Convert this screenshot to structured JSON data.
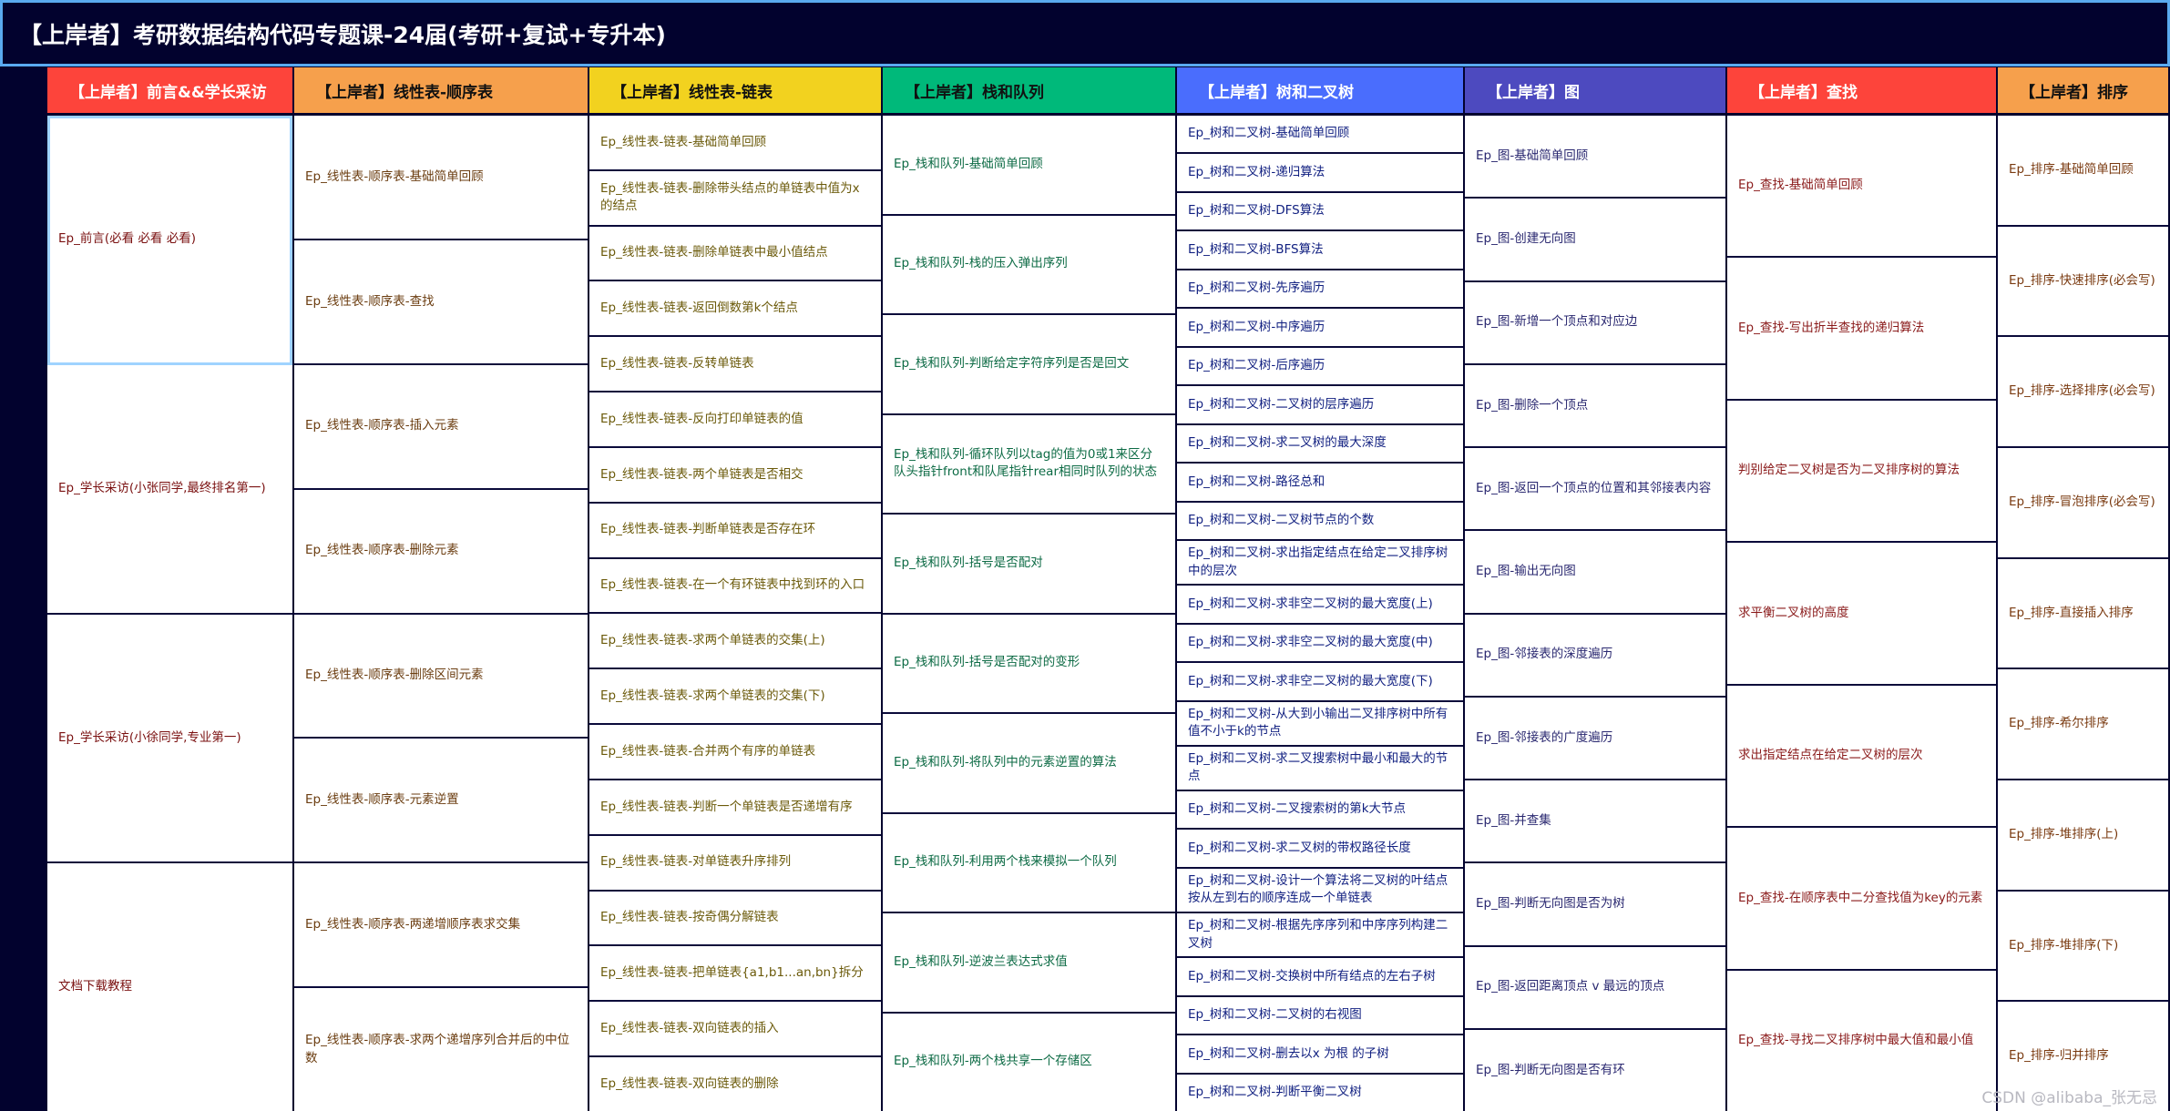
{
  "title": "【上岸者】考研数据结构代码专题课-24届(考研+复试+专升本)",
  "watermark": "CSDN @alibaba_张无忌",
  "columns": [
    {
      "header": "【上岸者】前言&&学长采访",
      "header_bg": "#fd443b",
      "header_fg": "#ffffff",
      "text_color": "#7a1010",
      "items": [
        "Ep_前言(必看 必看 必看)",
        "Ep_学长采访(小张同学,最终排名第一)",
        "Ep_学长采访(小徐同学,专业第一)",
        "文档下载教程"
      ]
    },
    {
      "header": "【上岸者】线性表-顺序表",
      "header_bg": "#f6a04c",
      "header_fg": "#111111",
      "text_color": "#6b3d10",
      "items": [
        "Ep_线性表-顺序表-基础简单回顾",
        "Ep_线性表-顺序表-查找",
        "Ep_线性表-顺序表-插入元素",
        "Ep_线性表-顺序表-删除元素",
        "Ep_线性表-顺序表-删除区间元素",
        "Ep_线性表-顺序表-元素逆置",
        "Ep_线性表-顺序表-两递增顺序表求交集",
        "Ep_线性表-顺序表-求两个递增序列合并后的中位数"
      ]
    },
    {
      "header": "【上岸者】线性表-链表",
      "header_bg": "#f2d21f",
      "header_fg": "#111111",
      "text_color": "#6b5a0a",
      "items": [
        "Ep_线性表-链表-基础简单回顾",
        "Ep_线性表-链表-删除带头结点的单链表中值为x的结点",
        "Ep_线性表-链表-删除单链表中最小值结点",
        "Ep_线性表-链表-返回倒数第k个结点",
        "Ep_线性表-链表-反转单链表",
        "Ep_线性表-链表-反向打印单链表的值",
        "Ep_线性表-链表-两个单链表是否相交",
        "Ep_线性表-链表-判断单链表是否存在环",
        "Ep_线性表-链表-在一个有环链表中找到环的入口",
        "Ep_线性表-链表-求两个单链表的交集(上)",
        "Ep_线性表-链表-求两个单链表的交集(下)",
        "Ep_线性表-链表-合并两个有序的单链表",
        "Ep_线性表-链表-判断一个单链表是否递增有序",
        "Ep_线性表-链表-对单链表升序排列",
        "Ep_线性表-链表-按奇偶分解链表",
        "Ep_线性表-链表-把单链表{a1,b1...an,bn}拆分",
        "Ep_线性表-链表-双向链表的插入",
        "Ep_线性表-链表-双向链表的删除"
      ]
    },
    {
      "header": "【上岸者】栈和队列",
      "header_bg": "#00b97a",
      "header_fg": "#111111",
      "text_color": "#0d6b45",
      "items": [
        "Ep_栈和队列-基础简单回顾",
        "Ep_栈和队列-栈的压入弹出序列",
        "Ep_栈和队列-判断给定字符序列是否是回文",
        "Ep_栈和队列-循环队列以tag的值为0或1来区分队头指针front和队尾指针rear相同时队列的状态",
        "Ep_栈和队列-括号是否配对",
        "Ep_栈和队列-括号是否配对的变形",
        "Ep_栈和队列-将队列中的元素逆置的算法",
        "Ep_栈和队列-利用两个栈来模拟一个队列",
        "Ep_栈和队列-逆波兰表达式求值",
        "Ep_栈和队列-两个栈共享一个存储区"
      ]
    },
    {
      "header": "【上岸者】树和二叉树",
      "header_bg": "#4a6dfd",
      "header_fg": "#ffffff",
      "text_color": "#101f80",
      "items": [
        "Ep_树和二叉树-基础简单回顾",
        "Ep_树和二叉树-递归算法",
        "Ep_树和二叉树-DFS算法",
        "Ep_树和二叉树-BFS算法",
        "Ep_树和二叉树-先序遍历",
        "Ep_树和二叉树-中序遍历",
        "Ep_树和二叉树-后序遍历",
        "Ep_树和二叉树-二叉树的层序遍历",
        "Ep_树和二叉树-求二叉树的最大深度",
        "Ep_树和二叉树-路径总和",
        "Ep_树和二叉树-二叉树节点的个数",
        "Ep_树和二叉树-求出指定结点在给定二叉排序树中的层次",
        "Ep_树和二叉树-求非空二叉树的最大宽度(上)",
        "Ep_树和二叉树-求非空二叉树的最大宽度(中)",
        "Ep_树和二叉树-求非空二叉树的最大宽度(下)",
        "Ep_树和二叉树-从大到小输出二叉排序树中所有值不小于k的节点",
        "Ep_树和二叉树-求二叉搜索树中最小和最大的节点",
        "Ep_树和二叉树-二叉搜索树的第k大节点",
        "Ep_树和二叉树-求二叉树的带权路径长度",
        "Ep_树和二叉树-设计一个算法将二叉树的叶结点按从左到右的顺序连成一个单链表",
        "Ep_树和二叉树-根据先序序列和中序序列构建二叉树",
        "Ep_树和二叉树-交换树中所有结点的左右子树",
        "Ep_树和二叉树-二叉树的右视图",
        "Ep_树和二叉树-删去以x 为根 的子树",
        "Ep_树和二叉树-判断平衡二叉树"
      ]
    },
    {
      "header": "【上岸者】图",
      "header_bg": "#4d4abf",
      "header_fg": "#ffffff",
      "text_color": "#2a2870",
      "items": [
        "Ep_图-基础简单回顾",
        "Ep_图-创建无向图",
        "Ep_图-新增一个顶点和对应边",
        "Ep_图-删除一个顶点",
        "Ep_图-返回一个顶点的位置和其邻接表内容",
        "Ep_图-输出无向图",
        "Ep_图-邻接表的深度遍历",
        "Ep_图-邻接表的广度遍历",
        "Ep_图-并查集",
        "Ep_图-判断无向图是否为树",
        "Ep_图-返回距离顶点 v 最远的顶点",
        "Ep_图-判断无向图是否有环"
      ]
    },
    {
      "header": "【上岸者】查找",
      "header_bg": "#fd443b",
      "header_fg": "#ffffff",
      "text_color": "#8a1a1a",
      "items": [
        "Ep_查找-基础简单回顾",
        "Ep_查找-写出折半查找的递归算法",
        "判别给定二叉树是否为二叉排序树的算法",
        "求平衡二叉树的高度",
        "求出指定结点在给定二叉树的层次",
        "Ep_查找-在顺序表中二分查找值为key的元素",
        "Ep_查找-寻找二叉排序树中最大值和最小值"
      ]
    },
    {
      "header": "【上岸者】排序",
      "header_bg": "#f6a04c",
      "header_fg": "#111111",
      "text_color": "#7a3a10",
      "items": [
        "Ep_排序-基础简单回顾",
        "Ep_排序-快速排序(必会写)",
        "Ep_排序-选择排序(必会写)",
        "Ep_排序-冒泡排序(必会写)",
        "Ep_排序-直接插入排序",
        "Ep_排序-希尔排序",
        "Ep_排序-堆排序(上)",
        "Ep_排序-堆排序(下)",
        "Ep_排序-归并排序"
      ]
    }
  ]
}
